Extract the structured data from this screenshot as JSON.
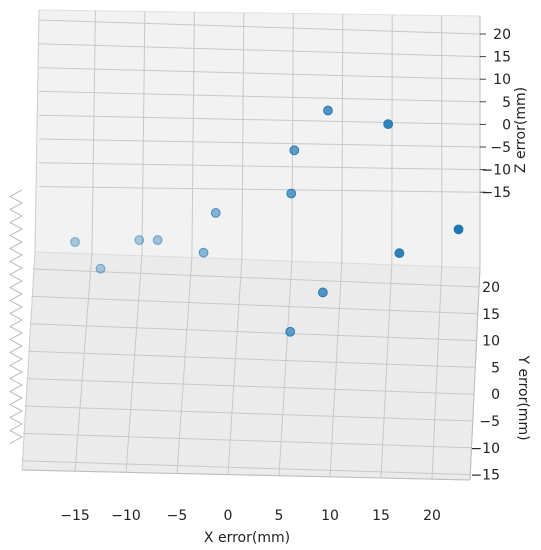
{
  "chart_data": {
    "type": "scatter",
    "projection": "3d",
    "xlabel": "X error(mm)",
    "ylabel": "Y error(mm)",
    "zlabel": "Z error(mm)",
    "x_ticks": [
      "−15",
      "−10",
      "−5",
      "0",
      "5",
      "10",
      "15",
      "20"
    ],
    "y_ticks": [
      "20",
      "15",
      "10",
      "5",
      "0",
      "−5",
      "−10",
      "−15"
    ],
    "z_ticks": [
      "20",
      "15",
      "10",
      "5",
      "0",
      "−5",
      "−10",
      "−15"
    ],
    "xlim": [
      -19,
      23
    ],
    "ylim": [
      -15,
      22
    ],
    "zlim": [
      -19,
      23
    ],
    "grid": true,
    "marker_color": "#1f77b4",
    "points": [
      {
        "x": -14.9,
        "z": -20.0
      },
      {
        "x": -12.4,
        "z": -25.5
      },
      {
        "x": -8.6,
        "z": -19.6
      },
      {
        "x": -6.8,
        "z": -19.6
      },
      {
        "x": -2.3,
        "z": -22.2
      },
      {
        "x": -1.1,
        "z": -14.0
      },
      {
        "x": 6.3,
        "z": -10.0
      },
      {
        "x": 6.6,
        "z": -1.1
      },
      {
        "x": 9.9,
        "z": 7.1
      },
      {
        "x": 15.8,
        "z": 4.3
      },
      {
        "x": 22.7,
        "z": -17.4
      },
      {
        "x": 16.9,
        "z": -22.3
      },
      {
        "x": 9.4,
        "z": -30.4
      },
      {
        "x": 6.2,
        "z": -38.5
      }
    ]
  }
}
